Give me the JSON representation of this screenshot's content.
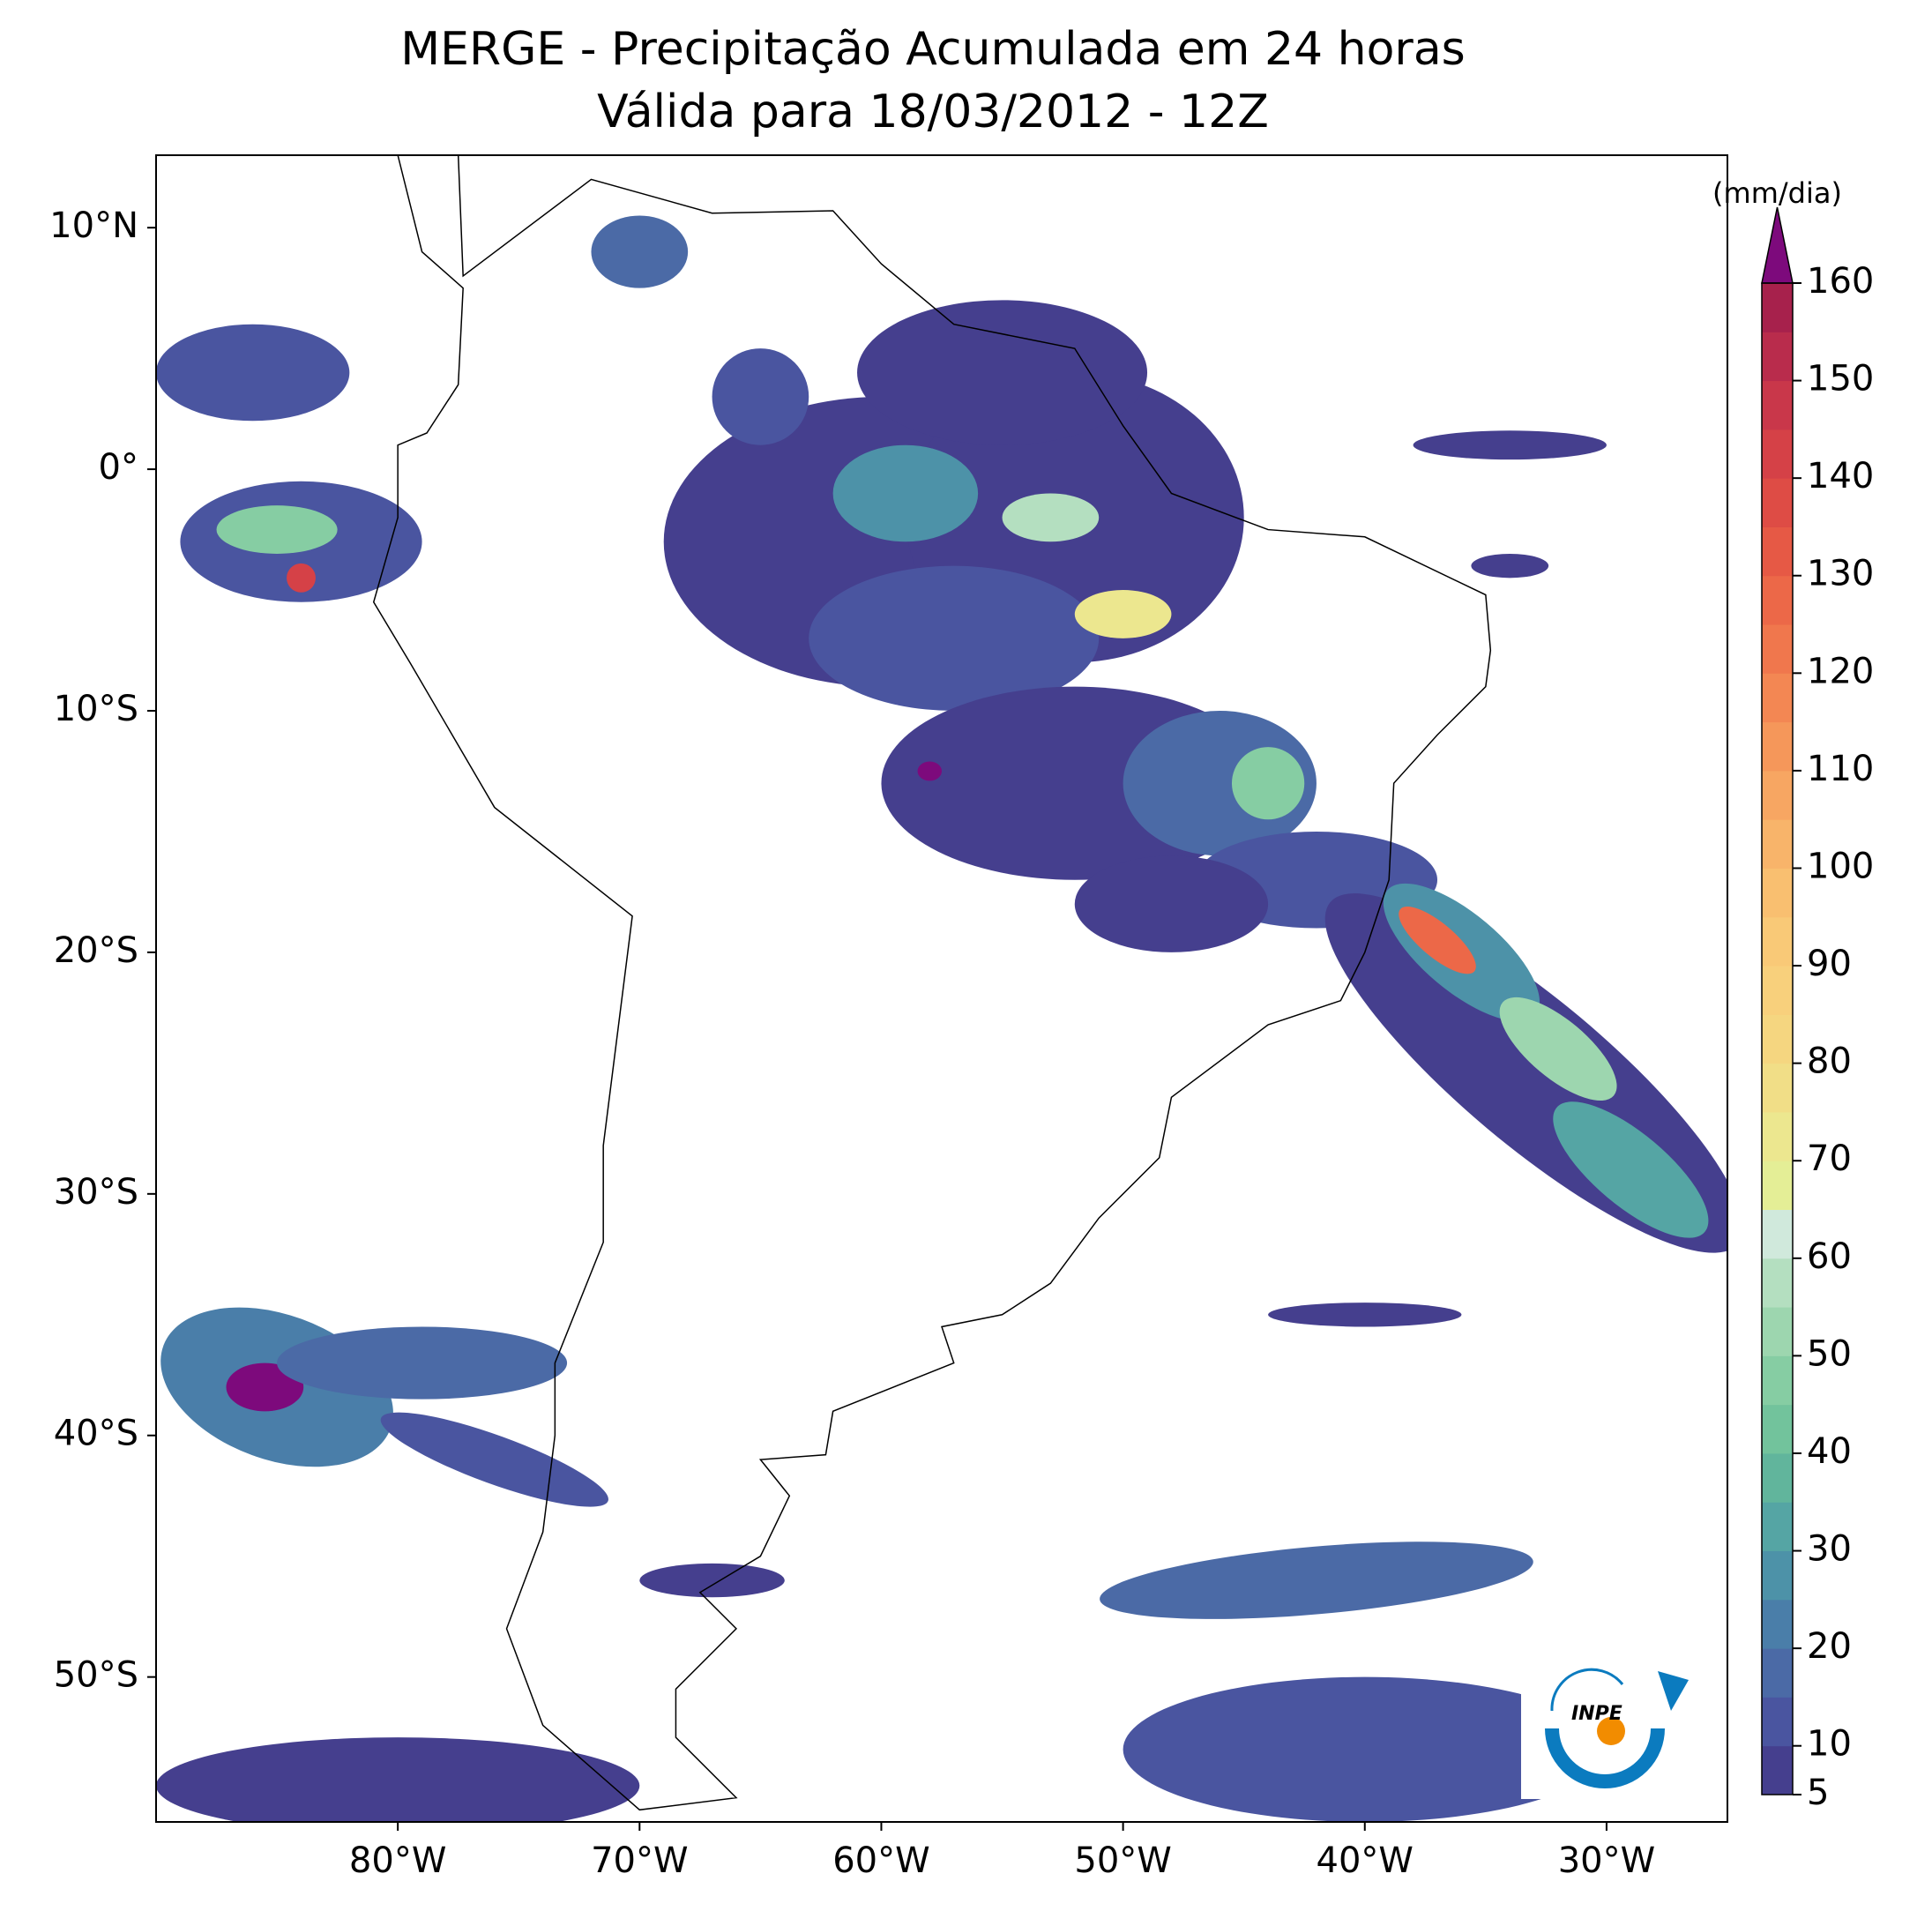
{
  "chart_data": {
    "type": "map",
    "title": "MERGE - Precipitação Acumulada em 24 horas",
    "subtitle": "Válida para 18/03/2012 - 12Z",
    "xlim": [
      -90,
      -25
    ],
    "ylim": [
      -56,
      13
    ],
    "xticks": [
      {
        "value": -80,
        "label": "80°W"
      },
      {
        "value": -70,
        "label": "70°W"
      },
      {
        "value": -60,
        "label": "60°W"
      },
      {
        "value": -50,
        "label": "50°W"
      },
      {
        "value": -40,
        "label": "40°W"
      },
      {
        "value": -30,
        "label": "30°W"
      }
    ],
    "yticks": [
      {
        "value": 10,
        "label": "10°N"
      },
      {
        "value": 0,
        "label": "0°"
      },
      {
        "value": -10,
        "label": "10°S"
      },
      {
        "value": -20,
        "label": "20°S"
      },
      {
        "value": -30,
        "label": "30°S"
      },
      {
        "value": -40,
        "label": "40°S"
      },
      {
        "value": -50,
        "label": "50°S"
      }
    ],
    "colorbar": {
      "label": "(mm/dia)",
      "bounds": [
        5,
        10,
        15,
        20,
        25,
        30,
        35,
        40,
        45,
        50,
        55,
        60,
        65,
        70,
        75,
        80,
        85,
        90,
        95,
        100,
        105,
        110,
        115,
        120,
        125,
        130,
        135,
        140,
        145,
        150,
        155,
        160
      ],
      "colors": [
        "#453f8e",
        "#4a55a0",
        "#4b6aa6",
        "#4a7ea9",
        "#4d92a8",
        "#55a5a4",
        "#61b59c",
        "#72c39c",
        "#86cda3",
        "#9dd6af",
        "#b4dfc0",
        "#d0e9dc",
        "#e4ee96",
        "#ece78f",
        "#f1de87",
        "#f5d680",
        "#f8d07c",
        "#f9c977",
        "#f9bf70",
        "#f8b46a",
        "#f7a662",
        "#f5975a",
        "#f38753",
        "#f0774d",
        "#ec6848",
        "#e65945",
        "#de4c45",
        "#d54147",
        "#c9374a",
        "#b92c4c",
        "#a7214c"
      ],
      "extend_color": "#7d0a7c",
      "ticks": [
        5,
        10,
        20,
        30,
        40,
        50,
        60,
        70,
        80,
        90,
        100,
        110,
        120,
        130,
        140,
        150,
        160
      ]
    },
    "logo_text": "INPE"
  }
}
